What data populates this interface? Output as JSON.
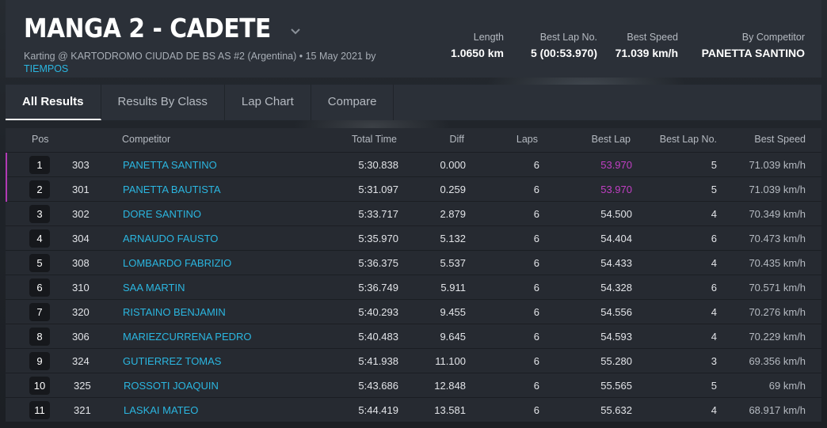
{
  "header": {
    "title": "MANGA 2 - CADETE",
    "subtitle_prefix": "Karting @ KARTODROMO CIUDAD DE BS AS #2 (Argentina) • 15 May 2021 by",
    "subtitle_link": "TIEMPOS",
    "stats": {
      "length_label": "Length",
      "length_value": "1.0650 km",
      "best_lap_no_label": "Best Lap No.",
      "best_lap_no_value": "5 (00:53.970)",
      "best_speed_label": "Best Speed",
      "best_speed_value": "71.039 km/h",
      "by_competitor_label": "By Competitor",
      "by_competitor_value": "PANETTA SANTINO"
    }
  },
  "tabs": [
    "All Results",
    "Results By Class",
    "Lap Chart",
    "Compare"
  ],
  "columns": {
    "pos": "Pos",
    "competitor": "Competitor",
    "total_time": "Total Time",
    "diff": "Diff",
    "laps": "Laps",
    "best_lap": "Best Lap",
    "best_lap_no": "Best Lap No.",
    "best_speed": "Best Speed"
  },
  "rows": [
    {
      "pos": "1",
      "no": "303",
      "name": "PANETTA SANTINO",
      "total": "5:30.838",
      "diff": "0.000",
      "laps": "6",
      "best_lap": "53.970",
      "best_lap_no": "5",
      "speed": "71.039 km/h",
      "highlight": true
    },
    {
      "pos": "2",
      "no": "301",
      "name": "PANETTA BAUTISTA",
      "total": "5:31.097",
      "diff": "0.259",
      "laps": "6",
      "best_lap": "53.970",
      "best_lap_no": "5",
      "speed": "71.039 km/h",
      "highlight": true
    },
    {
      "pos": "3",
      "no": "302",
      "name": "DORE SANTINO",
      "total": "5:33.717",
      "diff": "2.879",
      "laps": "6",
      "best_lap": "54.500",
      "best_lap_no": "4",
      "speed": "70.349 km/h",
      "highlight": false
    },
    {
      "pos": "4",
      "no": "304",
      "name": "ARNAUDO FAUSTO",
      "total": "5:35.970",
      "diff": "5.132",
      "laps": "6",
      "best_lap": "54.404",
      "best_lap_no": "6",
      "speed": "70.473 km/h",
      "highlight": false
    },
    {
      "pos": "5",
      "no": "308",
      "name": "LOMBARDO FABRIZIO",
      "total": "5:36.375",
      "diff": "5.537",
      "laps": "6",
      "best_lap": "54.433",
      "best_lap_no": "4",
      "speed": "70.435 km/h",
      "highlight": false
    },
    {
      "pos": "6",
      "no": "310",
      "name": "SAA MARTIN",
      "total": "5:36.749",
      "diff": "5.911",
      "laps": "6",
      "best_lap": "54.328",
      "best_lap_no": "6",
      "speed": "70.571 km/h",
      "highlight": false
    },
    {
      "pos": "7",
      "no": "320",
      "name": "RISTAINO BENJAMIN",
      "total": "5:40.293",
      "diff": "9.455",
      "laps": "6",
      "best_lap": "54.556",
      "best_lap_no": "4",
      "speed": "70.276 km/h",
      "highlight": false
    },
    {
      "pos": "8",
      "no": "306",
      "name": "MARIEZCURRENA PEDRO",
      "total": "5:40.483",
      "diff": "9.645",
      "laps": "6",
      "best_lap": "54.593",
      "best_lap_no": "4",
      "speed": "70.229 km/h",
      "highlight": false
    },
    {
      "pos": "9",
      "no": "324",
      "name": "GUTIERREZ TOMAS",
      "total": "5:41.938",
      "diff": "11.100",
      "laps": "6",
      "best_lap": "55.280",
      "best_lap_no": "3",
      "speed": "69.356 km/h",
      "highlight": false
    },
    {
      "pos": "10",
      "no": "325",
      "name": "ROSSOTI JOAQUIN",
      "total": "5:43.686",
      "diff": "12.848",
      "laps": "6",
      "best_lap": "55.565",
      "best_lap_no": "5",
      "speed": "69 km/h",
      "highlight": false
    },
    {
      "pos": "11",
      "no": "321",
      "name": "LASKAI MATEO",
      "total": "5:44.419",
      "diff": "13.581",
      "laps": "6",
      "best_lap": "55.632",
      "best_lap_no": "4",
      "speed": "68.917 km/h",
      "highlight": false
    }
  ],
  "colors": {
    "accent_link": "#2bb6e0",
    "best_lap_highlight": "#c13fc4",
    "background": "#1f2329",
    "panel": "#2b3038"
  }
}
